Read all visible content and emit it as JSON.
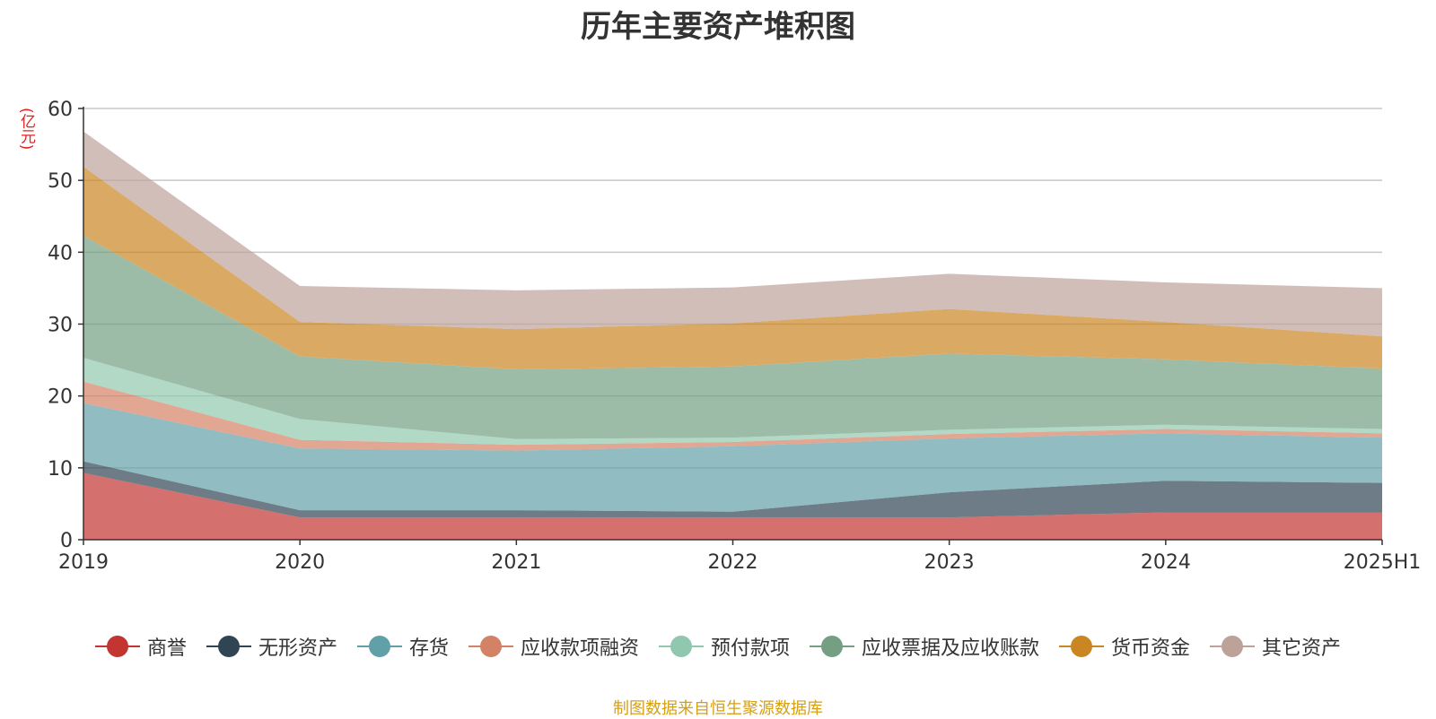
{
  "chart_data": {
    "type": "area",
    "stacked": true,
    "title": "历年主要资产堆积图",
    "unit_label": "(亿元)",
    "categories": [
      "2019",
      "2020",
      "2021",
      "2022",
      "2023",
      "2024",
      "2025H1"
    ],
    "ylim": [
      0,
      60
    ],
    "yticks": [
      0,
      10,
      20,
      30,
      40,
      50,
      60
    ],
    "grid": true,
    "legend_position": "bottom",
    "series": [
      {
        "name": "商誉",
        "color": "#c23531",
        "values": [
          9.3,
          3.1,
          3.1,
          3.1,
          3.1,
          3.8,
          3.8
        ]
      },
      {
        "name": "无形资产",
        "color": "#2f4554",
        "values": [
          1.6,
          1.0,
          1.0,
          0.8,
          3.5,
          4.4,
          4.1
        ]
      },
      {
        "name": "存货",
        "color": "#61a0a8",
        "values": [
          8.1,
          8.6,
          8.3,
          9.1,
          7.5,
          6.6,
          6.3
        ]
      },
      {
        "name": "应收款项融资",
        "color": "#d48265",
        "values": [
          3.0,
          1.2,
          0.8,
          0.6,
          0.6,
          0.6,
          0.6
        ]
      },
      {
        "name": "预付款项",
        "color": "#91c7ae",
        "values": [
          3.3,
          2.9,
          0.8,
          0.6,
          0.6,
          0.6,
          0.6
        ]
      },
      {
        "name": "应收票据及应收账款",
        "color": "#749f83",
        "values": [
          17.0,
          8.7,
          9.7,
          9.9,
          10.6,
          9.1,
          8.4
        ]
      },
      {
        "name": "货币资金",
        "color": "#ca8622",
        "values": [
          9.6,
          4.8,
          5.6,
          6.0,
          6.2,
          5.2,
          4.5
        ]
      },
      {
        "name": "其它资产",
        "color": "#bda29a",
        "values": [
          4.9,
          5.0,
          5.4,
          5.0,
          4.9,
          5.5,
          6.7
        ]
      }
    ]
  },
  "source_note": "制图数据来自恒生聚源数据库"
}
